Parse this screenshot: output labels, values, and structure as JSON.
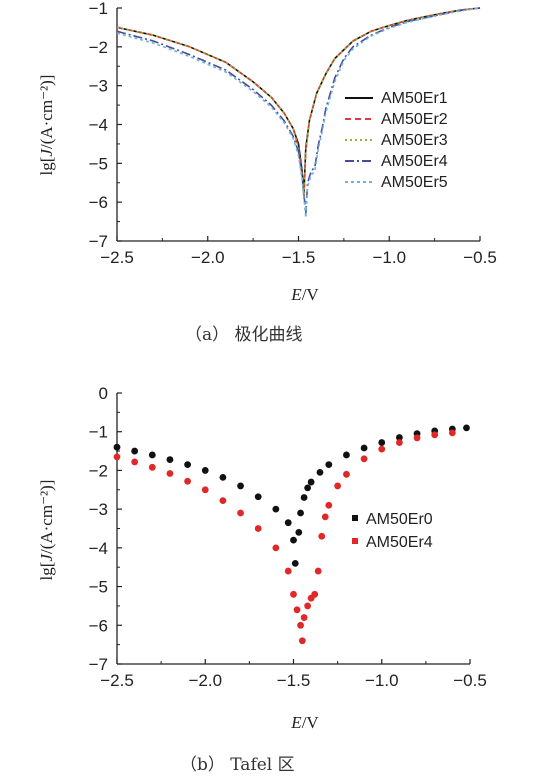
{
  "chart_data": [
    {
      "type": "line",
      "panel": "a",
      "caption": "（a）  极化曲线",
      "xlabel": "E/V",
      "ylabel": "lg[J/(A·cm⁻²)]",
      "xlim": [
        -2.5,
        -0.5
      ],
      "ylim": [
        -7,
        -1
      ],
      "x_ticks": [
        -2.5,
        -2.0,
        -1.5,
        -1.0,
        -0.5
      ],
      "x_tick_labels": [
        "−2.5",
        "−2.0",
        "−1.5",
        "−1.0",
        "−0.5"
      ],
      "y_ticks": [
        -7,
        -6,
        -5,
        -4,
        -3,
        -2,
        -1
      ],
      "y_tick_labels": [
        "−7",
        "−6",
        "−5",
        "−4",
        "−3",
        "−2",
        "−1"
      ],
      "legend_position": "right",
      "series": [
        {
          "name": "AM50Er1",
          "color": "#111111",
          "dash": "solid",
          "x": [
            -2.5,
            -2.3,
            -2.1,
            -1.9,
            -1.75,
            -1.65,
            -1.58,
            -1.53,
            -1.5,
            -1.48,
            -1.47,
            -1.46,
            -1.44,
            -1.4,
            -1.35,
            -1.3,
            -1.2,
            -1.1,
            -1.0,
            -0.9,
            -0.8,
            -0.7,
            -0.6,
            -0.5
          ],
          "y": [
            -1.5,
            -1.7,
            -2.0,
            -2.4,
            -2.9,
            -3.3,
            -3.7,
            -4.1,
            -4.5,
            -5.2,
            -5.8,
            -4.6,
            -3.9,
            -3.2,
            -2.7,
            -2.3,
            -1.85,
            -1.6,
            -1.45,
            -1.32,
            -1.22,
            -1.13,
            -1.05,
            -1.0
          ]
        },
        {
          "name": "AM50Er2",
          "color": "#e03a3a",
          "dash": "6,4",
          "x": [
            -2.5,
            -2.3,
            -2.1,
            -1.9,
            -1.75,
            -1.65,
            -1.58,
            -1.53,
            -1.5,
            -1.48,
            -1.47,
            -1.46,
            -1.44,
            -1.4,
            -1.35,
            -1.3,
            -1.2,
            -1.1,
            -1.0,
            -0.9,
            -0.8,
            -0.7,
            -0.6,
            -0.5
          ],
          "y": [
            -1.5,
            -1.7,
            -2.0,
            -2.4,
            -2.9,
            -3.3,
            -3.7,
            -4.1,
            -4.6,
            -5.3,
            -5.9,
            -4.7,
            -3.9,
            -3.2,
            -2.7,
            -2.3,
            -1.85,
            -1.6,
            -1.45,
            -1.32,
            -1.22,
            -1.13,
            -1.05,
            -1.0
          ]
        },
        {
          "name": "AM50Er3",
          "color": "#9ab03a",
          "dash": "2,3",
          "x": [
            -2.5,
            -2.3,
            -2.1,
            -1.9,
            -1.75,
            -1.65,
            -1.58,
            -1.53,
            -1.5,
            -1.48,
            -1.47,
            -1.46,
            -1.44,
            -1.4,
            -1.35,
            -1.3,
            -1.2,
            -1.1,
            -1.0,
            -0.9,
            -0.8,
            -0.7,
            -0.6,
            -0.5
          ],
          "y": [
            -1.5,
            -1.7,
            -2.0,
            -2.4,
            -2.9,
            -3.3,
            -3.7,
            -4.1,
            -4.6,
            -5.3,
            -5.9,
            -4.7,
            -3.9,
            -3.2,
            -2.7,
            -2.3,
            -1.85,
            -1.6,
            -1.45,
            -1.32,
            -1.22,
            -1.13,
            -1.05,
            -1.0
          ]
        },
        {
          "name": "AM50Er4",
          "color": "#4a4a9a",
          "dash": "9,3,2,3",
          "x": [
            -2.5,
            -2.3,
            -2.1,
            -1.9,
            -1.75,
            -1.65,
            -1.58,
            -1.53,
            -1.5,
            -1.48,
            -1.46,
            -1.45,
            -1.43,
            -1.41,
            -1.39,
            -1.37,
            -1.35,
            -1.3,
            -1.25,
            -1.2,
            -1.1,
            -1.0,
            -0.9,
            -0.8,
            -0.7,
            -0.6,
            -0.5
          ],
          "y": [
            -1.6,
            -1.85,
            -2.2,
            -2.6,
            -3.1,
            -3.5,
            -3.9,
            -4.3,
            -4.7,
            -5.3,
            -6.3,
            -5.5,
            -5.2,
            -5.1,
            -4.5,
            -4.1,
            -3.6,
            -2.8,
            -2.3,
            -2.0,
            -1.7,
            -1.5,
            -1.35,
            -1.25,
            -1.15,
            -1.06,
            -1.0
          ]
        },
        {
          "name": "AM50Er5",
          "color": "#6fb5d8",
          "dash": "3,3",
          "x": [
            -2.5,
            -2.3,
            -2.1,
            -1.9,
            -1.75,
            -1.65,
            -1.58,
            -1.53,
            -1.5,
            -1.48,
            -1.46,
            -1.45,
            -1.43,
            -1.41,
            -1.39,
            -1.37,
            -1.35,
            -1.3,
            -1.25,
            -1.2,
            -1.1,
            -1.0,
            -0.9,
            -0.8,
            -0.7,
            -0.6,
            -0.5
          ],
          "y": [
            -1.65,
            -1.9,
            -2.25,
            -2.65,
            -3.15,
            -3.55,
            -3.95,
            -4.35,
            -4.8,
            -5.4,
            -6.4,
            -5.6,
            -5.3,
            -5.2,
            -4.6,
            -4.2,
            -3.7,
            -2.9,
            -2.35,
            -2.05,
            -1.72,
            -1.52,
            -1.37,
            -1.26,
            -1.16,
            -1.07,
            -1.0
          ]
        }
      ]
    },
    {
      "type": "scatter",
      "panel": "b",
      "caption": "（b）  Tafel 区",
      "xlabel": "E/V",
      "ylabel": "lg[J/(A·cm⁻²)]",
      "xlim": [
        -2.5,
        -0.5
      ],
      "ylim": [
        -7,
        0
      ],
      "x_ticks": [
        -2.5,
        -2.0,
        -1.5,
        -1.0,
        -0.5
      ],
      "x_tick_labels": [
        "−2.5",
        "−2.0",
        "−1.5",
        "−1.0",
        "−0.5"
      ],
      "y_ticks": [
        -7,
        -6,
        -5,
        -4,
        -3,
        -2,
        -1,
        0
      ],
      "y_tick_labels": [
        "−7",
        "−6",
        "−5",
        "−4",
        "−3",
        "−2",
        "−1",
        "0"
      ],
      "legend_position": "right",
      "series": [
        {
          "name": "AM50Er0",
          "color": "#111111",
          "x": [
            -2.5,
            -2.4,
            -2.3,
            -2.2,
            -2.1,
            -2.0,
            -1.9,
            -1.8,
            -1.7,
            -1.6,
            -1.53,
            -1.5,
            -1.49,
            -1.47,
            -1.46,
            -1.44,
            -1.42,
            -1.4,
            -1.35,
            -1.3,
            -1.2,
            -1.1,
            -1.0,
            -0.9,
            -0.8,
            -0.7,
            -0.6,
            -0.52
          ],
          "y": [
            -1.4,
            -1.5,
            -1.6,
            -1.72,
            -1.85,
            -2.0,
            -2.18,
            -2.4,
            -2.68,
            -3.0,
            -3.35,
            -3.8,
            -4.4,
            -3.6,
            -3.1,
            -2.7,
            -2.45,
            -2.3,
            -2.05,
            -1.85,
            -1.6,
            -1.42,
            -1.28,
            -1.15,
            -1.05,
            -0.98,
            -0.93,
            -0.9
          ]
        },
        {
          "name": "AM50Er4",
          "color": "#e02828",
          "x": [
            -2.5,
            -2.4,
            -2.3,
            -2.2,
            -2.1,
            -2.0,
            -1.9,
            -1.8,
            -1.7,
            -1.6,
            -1.53,
            -1.5,
            -1.48,
            -1.46,
            -1.45,
            -1.44,
            -1.42,
            -1.4,
            -1.38,
            -1.36,
            -1.34,
            -1.32,
            -1.3,
            -1.25,
            -1.2,
            -1.1,
            -1.0,
            -0.9,
            -0.8,
            -0.7,
            -0.6
          ],
          "y": [
            -1.65,
            -1.78,
            -1.92,
            -2.08,
            -2.28,
            -2.5,
            -2.78,
            -3.1,
            -3.5,
            -4.0,
            -4.6,
            -5.2,
            -5.6,
            -6.0,
            -6.4,
            -5.8,
            -5.5,
            -5.3,
            -5.2,
            -4.6,
            -3.7,
            -3.2,
            -2.9,
            -2.4,
            -2.1,
            -1.7,
            -1.45,
            -1.28,
            -1.16,
            -1.08,
            -1.03
          ]
        }
      ]
    }
  ]
}
